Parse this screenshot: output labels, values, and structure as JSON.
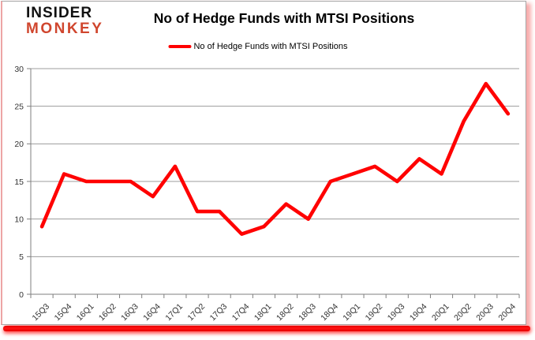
{
  "branding": {
    "logo_line1": "INSIDER",
    "logo_line2": "MONKEY",
    "logo_color_line1": "#111111",
    "logo_color_line2": "#d0462e"
  },
  "header": {
    "title": "No of Hedge Funds with MTSI Positions"
  },
  "legend": {
    "label": "No of Hedge Funds with MTSI Positions",
    "line_color": "#ff0000"
  },
  "chart_data": {
    "type": "line",
    "title": "No of Hedge Funds with MTSI Positions",
    "categories": [
      "15Q3",
      "15Q4",
      "16Q1",
      "16Q2",
      "16Q3",
      "16Q4",
      "17Q1",
      "17Q2",
      "17Q3",
      "17Q4",
      "18Q1",
      "18Q2",
      "18Q3",
      "18Q4",
      "19Q1",
      "19Q2",
      "19Q3",
      "19Q4",
      "20Q1",
      "20Q2",
      "20Q3",
      "20Q4"
    ],
    "series": [
      {
        "name": "No of Hedge Funds with MTSI Positions",
        "color": "#ff0000",
        "values": [
          9,
          16,
          15,
          15,
          15,
          13,
          17,
          11,
          11,
          8,
          9,
          12,
          10,
          15,
          16,
          17,
          15,
          18,
          16,
          23,
          28,
          24
        ]
      }
    ],
    "xlabel": "",
    "ylabel": "",
    "ylim": [
      0,
      30
    ],
    "ytick_step": 5,
    "yticks": [
      0,
      5,
      10,
      15,
      20,
      25,
      30
    ],
    "grid": "horizontal",
    "legend_position": "top",
    "x_label_rotation": -45
  },
  "style": {
    "grid_color": "#9c9c9c",
    "axis_color": "#7f7f7f",
    "tick_label_color": "#333333",
    "canvas_border_color": "#a6a6a6",
    "accent_red": "#ff0000"
  }
}
